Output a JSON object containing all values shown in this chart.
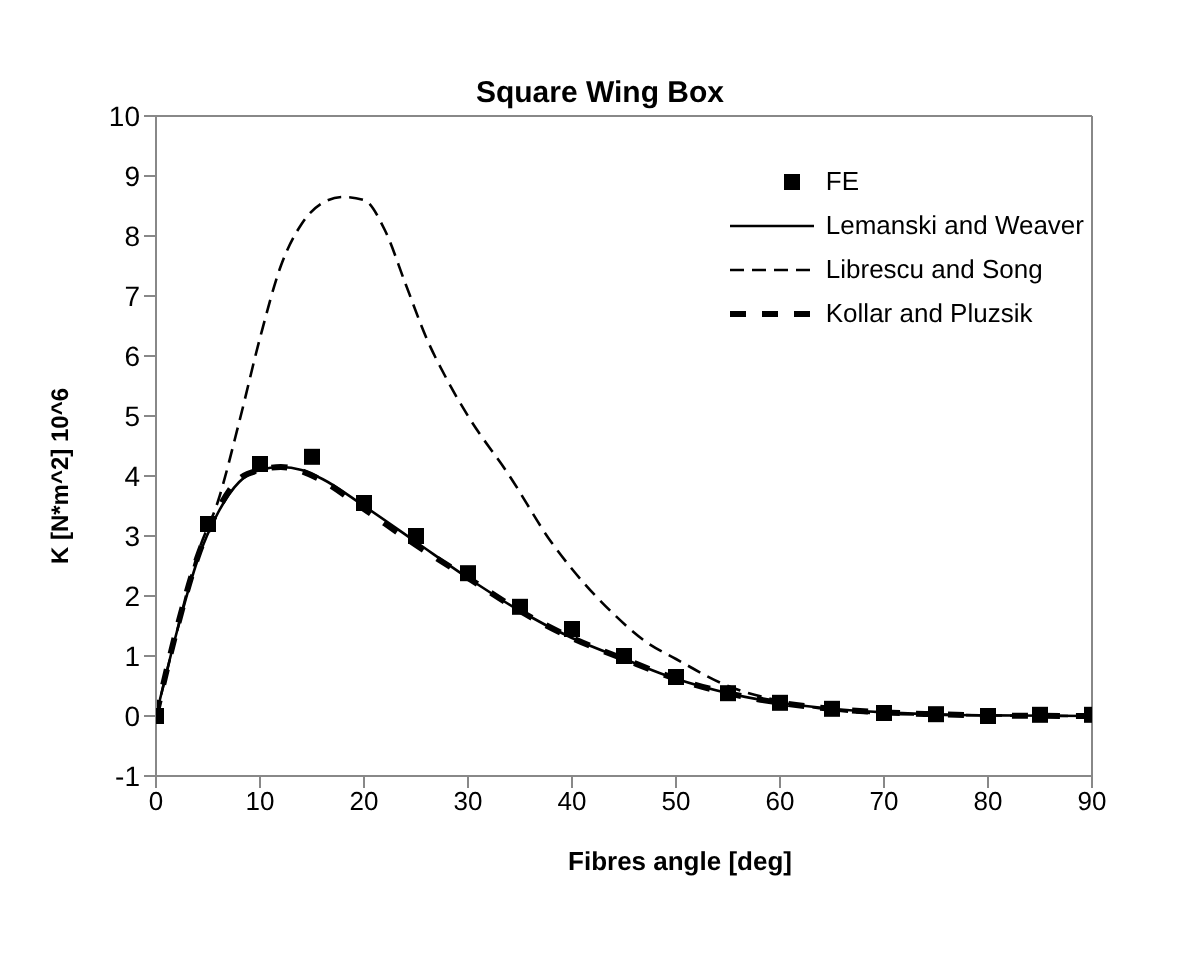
{
  "chart_data": {
    "type": "line",
    "title": "Square Wing Box",
    "xlabel": "Fibres angle [deg]",
    "ylabel": "K [N*m^2] 10^6",
    "xlim": [
      0,
      90
    ],
    "xticks": [
      0,
      10,
      20,
      30,
      40,
      50,
      60,
      70,
      80,
      90
    ],
    "ylim": [
      -1,
      10
    ],
    "yticks": [
      -1,
      0,
      1,
      2,
      3,
      4,
      5,
      6,
      7,
      8,
      9,
      10
    ],
    "grid": false,
    "legend": "top right",
    "series": [
      {
        "name": "FE",
        "type": "scatter",
        "marker": "square",
        "color": "#000000",
        "x": [
          0,
          5,
          10,
          15,
          20,
          25,
          30,
          35,
          40,
          45,
          50,
          55,
          60,
          65,
          70,
          75,
          80,
          85,
          90
        ],
        "values": [
          0,
          3.2,
          4.2,
          4.32,
          3.55,
          3.0,
          2.38,
          1.82,
          1.45,
          1.0,
          0.65,
          0.38,
          0.22,
          0.12,
          0.05,
          0.03,
          0.0,
          0.02,
          0.02
        ]
      },
      {
        "name": "Lemanski and Weaver",
        "line_style": "solid",
        "marker": "none",
        "color": "#000000",
        "x": [
          0,
          2,
          4,
          6,
          8,
          10,
          12,
          14,
          16,
          20,
          25,
          30,
          35,
          40,
          45,
          50,
          55,
          60,
          65,
          70,
          75,
          80,
          90
        ],
        "values": [
          0,
          1.4,
          2.6,
          3.4,
          3.9,
          4.1,
          4.15,
          4.1,
          3.95,
          3.5,
          2.9,
          2.3,
          1.75,
          1.3,
          0.95,
          0.62,
          0.38,
          0.22,
          0.12,
          0.06,
          0.03,
          0.01,
          0
        ]
      },
      {
        "name": "Librescu and Song",
        "line_style": "dashed",
        "marker": "none",
        "color": "#000000",
        "x": [
          0,
          2,
          4,
          6,
          8,
          10,
          12,
          14,
          16,
          18,
          20,
          22,
          24,
          26,
          28,
          30,
          34,
          38,
          40,
          44,
          47,
          50,
          55,
          60,
          65,
          70,
          80,
          90
        ],
        "values": [
          0,
          1.4,
          2.7,
          3.6,
          4.9,
          6.3,
          7.5,
          8.2,
          8.55,
          8.65,
          8.6,
          8.1,
          7.2,
          6.3,
          5.6,
          5.0,
          4.0,
          2.9,
          2.45,
          1.7,
          1.25,
          0.95,
          0.5,
          0.25,
          0.1,
          0.04,
          0.01,
          0
        ]
      },
      {
        "name": "Kollar and Pluzsik",
        "line_style": "dashed",
        "marker": "none",
        "color": "#000000",
        "x": [
          0,
          2,
          4,
          6,
          8,
          10,
          12,
          14,
          16,
          20,
          25,
          30,
          35,
          40,
          45,
          50,
          55,
          60,
          65,
          70,
          75,
          80,
          90
        ],
        "values": [
          0,
          1.45,
          2.65,
          3.45,
          3.95,
          4.1,
          4.15,
          4.08,
          3.92,
          3.45,
          2.85,
          2.3,
          1.75,
          1.3,
          0.95,
          0.62,
          0.38,
          0.22,
          0.12,
          0.06,
          0.03,
          0.01,
          0
        ]
      }
    ]
  }
}
